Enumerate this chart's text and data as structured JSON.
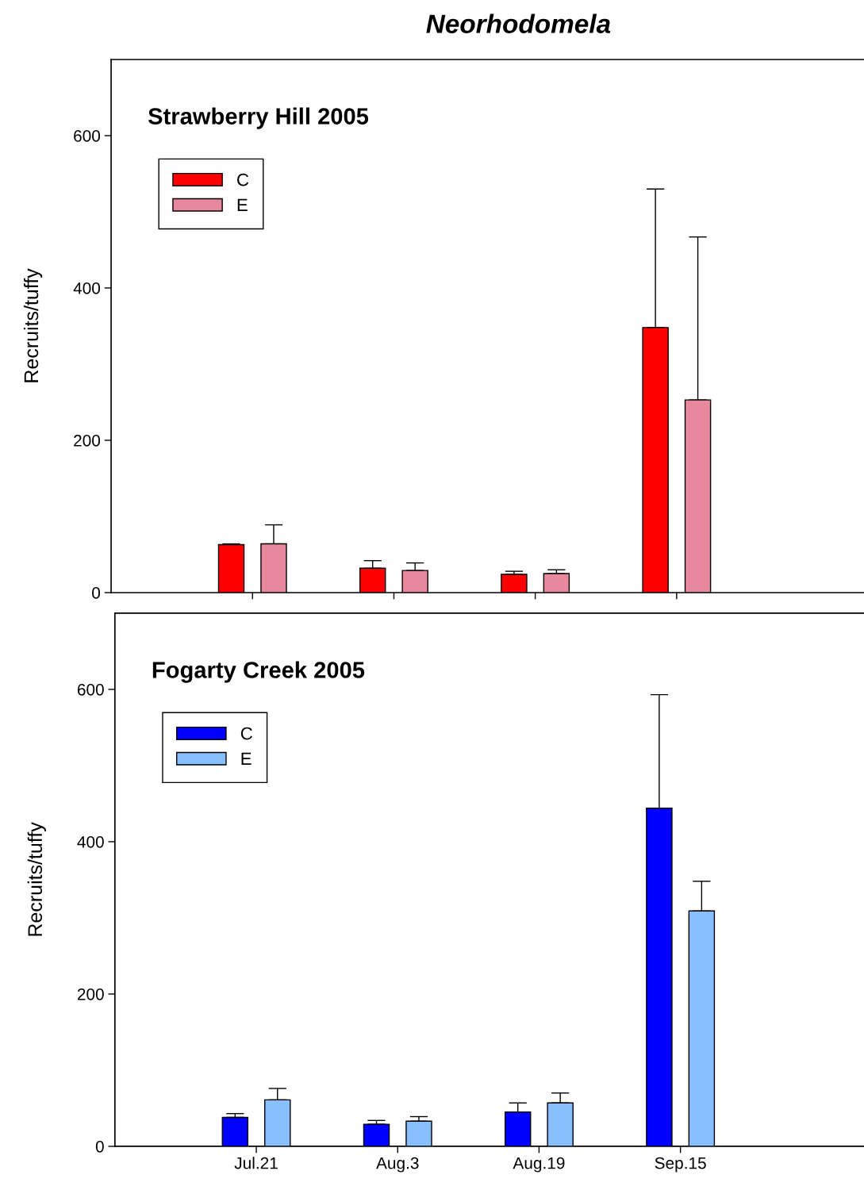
{
  "chart_data": [
    {
      "type": "bar",
      "title": "Neorhodomela",
      "subtitle": "Strawberry Hill 2005",
      "ylabel": "Recruits/tuffy",
      "categories": [
        null,
        null,
        null,
        null
      ],
      "tick_labels": "y",
      "ylim": [
        0,
        700
      ],
      "yticks": [
        0,
        200,
        400,
        600
      ],
      "legend": "top left",
      "grid": false,
      "series": [
        {
          "name": "C",
          "color": "#ff0000",
          "values": [
            63,
            32,
            24,
            348
          ],
          "errors": [
            [
              63,
              64
            ],
            [
              32,
              42
            ],
            [
              24,
              28
            ],
            [
              348,
              530
            ]
          ]
        },
        {
          "name": "E",
          "color": "#e8889c",
          "values": [
            64,
            29,
            25,
            253
          ],
          "errors": [
            [
              64,
              89
            ],
            [
              29,
              39
            ],
            [
              25,
              30
            ],
            [
              253,
              467
            ]
          ]
        }
      ]
    },
    {
      "type": "bar",
      "subtitle": "Fogarty Creek 2005",
      "ylabel": "Recruits/tuffy",
      "categories": [
        "Jul.21",
        "Aug.3",
        "Aug.19",
        "Sep.15"
      ],
      "ylim": [
        0,
        700
      ],
      "yticks": [
        0,
        200,
        400,
        600
      ],
      "legend": "top left",
      "grid": false,
      "series": [
        {
          "name": "C",
          "color": "#0000ff",
          "values": [
            38,
            29,
            45,
            444
          ],
          "errors": [
            [
              38,
              43
            ],
            [
              29,
              34
            ],
            [
              45,
              57
            ],
            [
              444,
              593
            ]
          ]
        },
        {
          "name": "E",
          "color": "#88bfff",
          "values": [
            61,
            33,
            57,
            309
          ],
          "errors": [
            [
              61,
              76
            ],
            [
              33,
              39
            ],
            [
              57,
              70
            ],
            [
              309,
              348
            ]
          ]
        }
      ]
    }
  ]
}
